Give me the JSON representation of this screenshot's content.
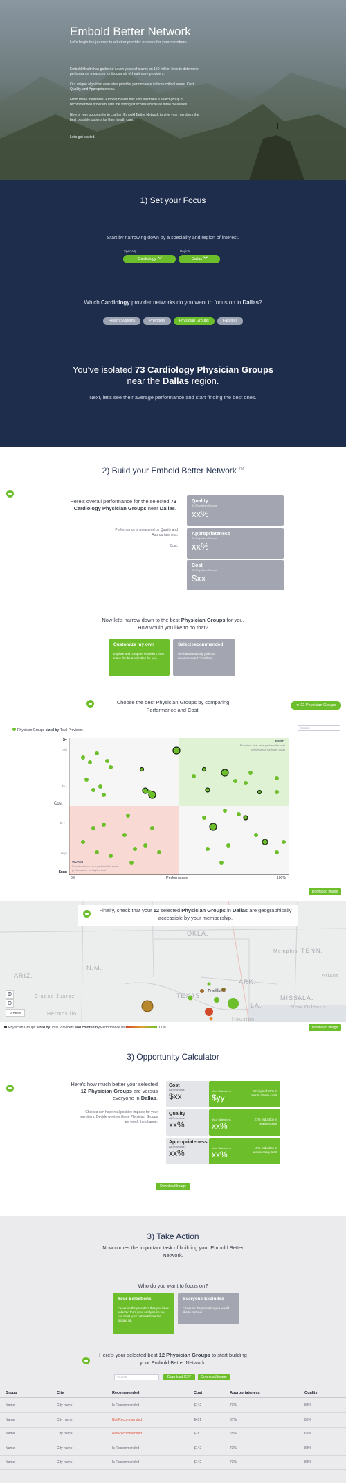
{
  "hero": {
    "title": "Embold Better Network",
    "subtitle": "Let's begin the journey to a better provider network for your members.",
    "paragraphs": [
      "Embold Health has gathered seven years of claims on 150 million lives to determine performance measures for thousands of healthcare providers.",
      "Our unique algorithm evaluates provider performance in three critical areas: Cost, Quality, and Appropriateness.",
      "From these measures, Embold Health has also identified a select group of recommended providers with the strongest scores across all three measures.",
      "Now is your opportunity to craft an Embold Better Network to give your members the best possible options for their health care.",
      "Let's get started."
    ]
  },
  "focus": {
    "heading": "1) Set your Focus",
    "intro": "Start by narrowing down by a speciality and region of interest.",
    "specialty_label": "Specialty",
    "specialty": "Cardiology",
    "region_label": "Region",
    "region": "Dallas",
    "question": [
      "Which ",
      "Cardiology",
      " provider networks do you want to focus on in ",
      "Dallas",
      "?"
    ],
    "types": [
      "Health Systems",
      "Providers",
      "Physician Groups",
      "Facilities"
    ],
    "result": [
      "You've isolated ",
      "73 Cardiology Physician Groups"
    ],
    "result2": [
      "near the ",
      "Dallas",
      " region."
    ],
    "next": "Next, let's see their average performance and start finding the best ones."
  },
  "build": {
    "heading": "2) Build your Embold Better Network",
    "tm": "TM",
    "overview": [
      "Here's overall performance for the selected ",
      "73 Cardiology Physician Groups",
      " near ",
      "Dallas",
      "."
    ],
    "note": "Performance is measured by Quality and Appropriateness.",
    "note2": "Cost.",
    "metrics": [
      {
        "name": "Quality",
        "sub": "All Physician Groups",
        "value": "xx%"
      },
      {
        "name": "Appropriateness",
        "sub": "All Physician Groups",
        "value": "xx%"
      },
      {
        "name": "Cost",
        "sub": "All Physician Groups",
        "value": "$xx"
      }
    ],
    "narrow": [
      "Now let's narrow down to the best ",
      "Physician Groups",
      " for you."
    ],
    "narrow2": "How would you like to do that?",
    "options": [
      {
        "title": "Customize my own",
        "text": "Explore and compare Providers then make the best selection for you."
      },
      {
        "title": "Select recommended",
        "text": "We'll automatically pick our recommended Providers."
      }
    ]
  },
  "chart": {
    "prompt": "Choose the best Physician Groups by comparing Performance and Cost.",
    "button": "12 Physician Groups",
    "search": "Search",
    "legend": [
      "Physician Groups",
      " sized by ",
      "Total Providers"
    ],
    "y_label": "Cost",
    "y_ticks": [
      "$+",
      "Low",
      "$++",
      "$+++",
      "High",
      "$xxx"
    ],
    "x_label": "Performance",
    "x_start": "0%",
    "x_end": "100%",
    "best": "BEST",
    "best_note": "Providers near here perform the best performance for lower costs",
    "worst": "WORST",
    "worst_note": "Providers near here perform the worst performance for higher cost",
    "download": "Download Image"
  },
  "map": {
    "prompt": [
      "Finally, check that your ",
      "12",
      " selected ",
      "Physician Groups",
      " in ",
      "Dallas",
      " are geographically accessible by your membership."
    ],
    "labels": [
      "ARIZ.",
      "N.M.",
      "OKLA.",
      "TENN.",
      "Memphis",
      "Atlant",
      "ARK.",
      "MISS.",
      "ALA.",
      "TEXAS",
      "LA.",
      "Dallas",
      "Ciudad Juárez",
      "Hermosillo",
      "New Orleans",
      "Houston"
    ],
    "reset": "Reset",
    "legend": [
      "Physician Groups",
      " sized by ",
      "Total Providers",
      " and colored by ",
      "Performance"
    ],
    "scale_start": "0%",
    "scale_end": "100%",
    "download": "Download Image"
  },
  "opportunity": {
    "heading": "3) Opportunity Calculator",
    "summary": [
      "Here's how much better your selected ",
      "12 Physician Groups",
      " are versus everyone in ",
      "Dallas",
      "."
    ],
    "note": "Choices can have real positive impacts for your members. Decide whether these Physician Groups are worth the change.",
    "rows": [
      {
        "name": "Cost",
        "base_label": "All Providers",
        "base": "$xx",
        "sel_label": "Your Selections",
        "sel": "$yy",
        "impact": "Savings of 21% in overall claims costs"
      },
      {
        "name": "Quality",
        "base_label": "All Providers",
        "base": "xx%",
        "sel_label": "Your Selections",
        "sel": "xx%",
        "impact": "21% reduction in readmissions"
      },
      {
        "name": "Appropriateness",
        "base_label": "All Providers",
        "base": "xx%",
        "sel_label": "Your Selections",
        "sel": "xx%",
        "impact": "19% reduction in unnecessary tests"
      }
    ],
    "download": "Download Image"
  },
  "action": {
    "heading": "3) Take Action",
    "intro": "Now comes the important task of building your Embold Better Network.",
    "question": "Who do you want to focus on?",
    "options": [
      {
        "title": "Your Selections",
        "text": "Focus on the providers that you have selected from your analysis so you can build your network from the ground up."
      },
      {
        "title": "Everyone Excluded",
        "text": "Focus on the providers you would like to remove."
      }
    ],
    "summary": [
      "Here's your selected best ",
      "12 Physician Groups",
      " to start building your Embold Better Network."
    ],
    "search": "Search",
    "csv": "Download CSV",
    "download": "Download Image",
    "table": {
      "columns": [
        "Group",
        "City",
        "Recommended",
        "Cost",
        "Appropriateness",
        "Quality"
      ],
      "rows": [
        [
          "Name",
          "City name",
          "Is Recommended",
          "$142",
          "73%",
          "88%"
        ],
        [
          "Name",
          "City name",
          "Not Recommended",
          "$451",
          "67%",
          "85%"
        ],
        [
          "Name",
          "City name",
          "Not Recommended",
          "$78",
          "55%",
          "67%"
        ],
        [
          "Name",
          "City name",
          "Is Recommended",
          "$142",
          "73%",
          "88%"
        ],
        [
          "Name",
          "City name",
          "Is Recommended",
          "$142",
          "73%",
          "88%"
        ]
      ]
    }
  }
}
